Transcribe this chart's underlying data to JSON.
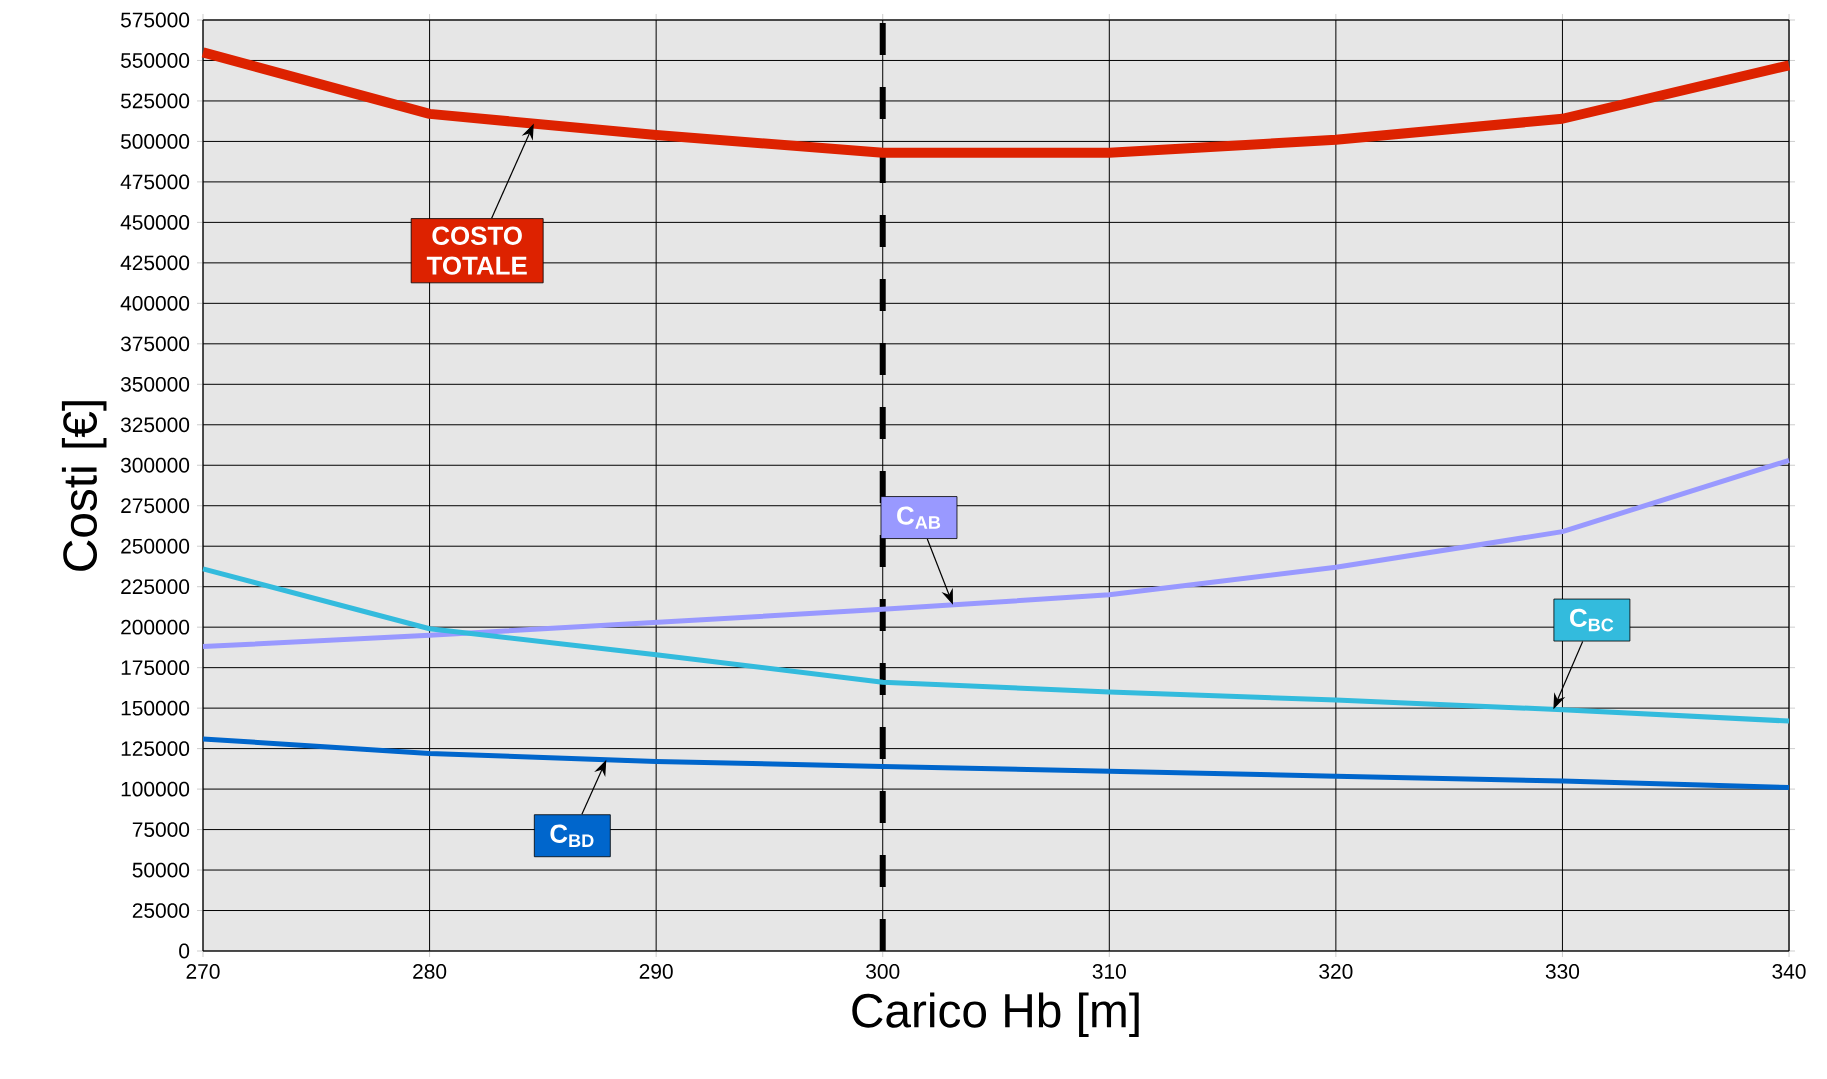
{
  "chart_data": {
    "type": "line",
    "xlabel": "Carico Hb [m]",
    "ylabel": "Costi [€]",
    "x": [
      270,
      280,
      290,
      300,
      310,
      320,
      330,
      340
    ],
    "series": [
      {
        "name": "COSTO TOTALE",
        "color": "#dd2200",
        "values": [
          555000,
          517000,
          504000,
          493000,
          493000,
          501000,
          514000,
          547000
        ]
      },
      {
        "name": "C$_{AB}$",
        "color": "#9999ff",
        "values": [
          188000,
          195000,
          203000,
          211000,
          220000,
          237000,
          259000,
          303000
        ]
      },
      {
        "name": "C$_{BC}$",
        "color": "#33bbdd",
        "values": [
          236000,
          199000,
          183000,
          166000,
          160000,
          155000,
          149000,
          142000
        ]
      },
      {
        "name": "C$_{BD}$",
        "color": "#0066cc",
        "values": [
          131000,
          122000,
          117000,
          114000,
          111000,
          108000,
          105000,
          101000
        ]
      }
    ],
    "xlim": [
      270,
      340
    ],
    "ylim": [
      0,
      575000
    ],
    "xticks": [
      270,
      280,
      290,
      300,
      310,
      320,
      330,
      340
    ],
    "yticks": [
      0,
      25000,
      50000,
      75000,
      100000,
      125000,
      150000,
      175000,
      200000,
      225000,
      250000,
      275000,
      300000,
      325000,
      350000,
      375000,
      400000,
      425000,
      450000,
      475000,
      500000,
      525000,
      550000,
      575000
    ],
    "ref_lines": [
      {
        "axis": "x",
        "value": 300,
        "color": "#000000",
        "line_style": "dashed"
      }
    ],
    "grid": true,
    "marker": "none",
    "line_style": "solid"
  }
}
